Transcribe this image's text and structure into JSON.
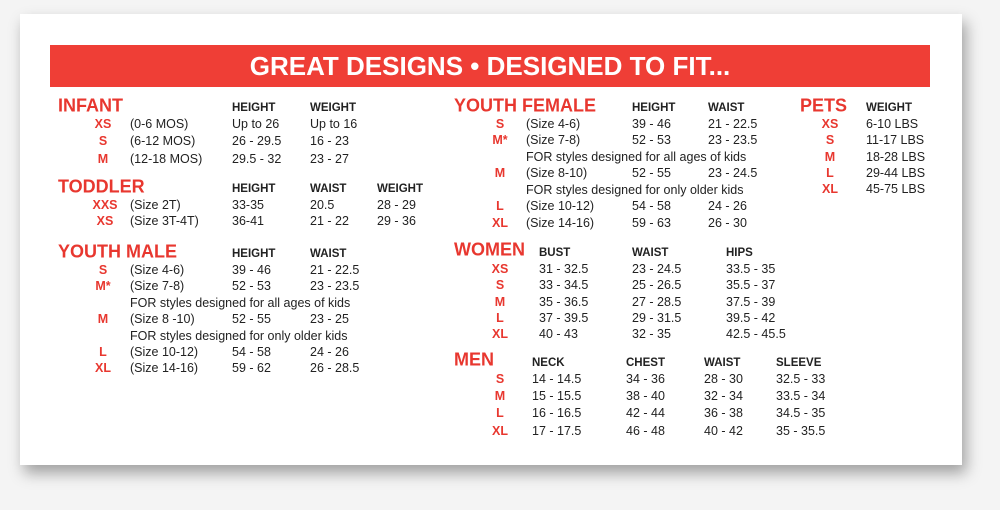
{
  "title": "GREAT DESIGNS • DESIGNED TO FIT...",
  "sections": [
    {
      "name": "INFANT",
      "columns": [
        "HEIGHT",
        "WEIGHT"
      ],
      "rows": [
        {
          "size": "XS",
          "label": "(0-6 MOS)",
          "values": [
            "Up to 26",
            "Up to 16"
          ]
        },
        {
          "size": "S",
          "label": "(6-12 MOS)",
          "values": [
            "26 - 29.5",
            "16 - 23"
          ]
        },
        {
          "size": "M",
          "label": "(12-18 MOS)",
          "values": [
            "29.5 - 32",
            "23 - 27"
          ]
        }
      ]
    },
    {
      "name": "TODDLER",
      "columns": [
        "HEIGHT",
        "WAIST",
        "WEIGHT"
      ],
      "rows": [
        {
          "size": "XXS",
          "label": "(Size 2T)",
          "values": [
            "33-35",
            "20.5",
            "28 - 29"
          ]
        },
        {
          "size": "XS",
          "label": "(Size 3T-4T)",
          "values": [
            "36-41",
            "21 - 22",
            "29 - 36"
          ]
        }
      ]
    },
    {
      "name": "YOUTH MALE",
      "columns": [
        "HEIGHT",
        "WAIST"
      ],
      "rows": [
        {
          "size": "S",
          "label": "(Size 4-6)",
          "values": [
            "39 - 46",
            "21 - 22.5"
          ]
        },
        {
          "size": "M*",
          "label": "(Size 7-8)",
          "values": [
            "52 - 53",
            "23 - 23.5"
          ]
        },
        {
          "note": "FOR styles designed for all ages of kids"
        },
        {
          "size": "M",
          "label": "(Size 8 -10)",
          "values": [
            "52 - 55",
            "23 - 25"
          ]
        },
        {
          "note": "FOR styles designed for only older kids"
        },
        {
          "size": "L",
          "label": "(Size 10-12)",
          "values": [
            "54 - 58",
            "24 - 26"
          ]
        },
        {
          "size": "XL",
          "label": "(Size 14-16)",
          "values": [
            "59 - 62",
            "26 - 28.5"
          ]
        }
      ]
    },
    {
      "name": "YOUTH FEMALE",
      "columns": [
        "HEIGHT",
        "WAIST"
      ],
      "rows": [
        {
          "size": "S",
          "label": "(Size 4-6)",
          "values": [
            "39 - 46",
            "21 - 22.5"
          ]
        },
        {
          "size": "M*",
          "label": "(Size 7-8)",
          "values": [
            "52 - 53",
            "23 - 23.5"
          ]
        },
        {
          "note": "FOR styles designed for all ages of kids"
        },
        {
          "size": "M",
          "label": "(Size 8-10)",
          "values": [
            "52 - 55",
            "23 - 24.5"
          ]
        },
        {
          "note": "FOR styles designed for only older kids"
        },
        {
          "size": "L",
          "label": "(Size 10-12)",
          "values": [
            "54 - 58",
            "24 - 26"
          ]
        },
        {
          "size": "XL",
          "label": "(Size 14-16)",
          "values": [
            "59 - 63",
            "26 - 30"
          ]
        }
      ]
    },
    {
      "name": "PETS",
      "columns": [
        "WEIGHT"
      ],
      "rows": [
        {
          "size": "XS",
          "values": [
            "6-10 LBS"
          ]
        },
        {
          "size": "S",
          "values": [
            "11-17 LBS"
          ]
        },
        {
          "size": "M",
          "values": [
            "18-28 LBS"
          ]
        },
        {
          "size": "L",
          "values": [
            "29-44 LBS"
          ]
        },
        {
          "size": "XL",
          "values": [
            "45-75 LBS"
          ]
        }
      ]
    },
    {
      "name": "WOMEN",
      "columns": [
        "BUST",
        "WAIST",
        "HIPS"
      ],
      "rows": [
        {
          "size": "XS",
          "values": [
            "31 - 32.5",
            "23 - 24.5",
            "33.5 - 35"
          ]
        },
        {
          "size": "S",
          "values": [
            "33 - 34.5",
            "25 - 26.5",
            "35.5 - 37"
          ]
        },
        {
          "size": "M",
          "values": [
            "35 - 36.5",
            "27 - 28.5",
            "37.5 - 39"
          ]
        },
        {
          "size": "L",
          "values": [
            "37 - 39.5",
            "29 - 31.5",
            "39.5 - 42"
          ]
        },
        {
          "size": "XL",
          "values": [
            "40 - 43",
            "32 - 35",
            "42.5 - 45.5"
          ]
        }
      ]
    },
    {
      "name": "MEN",
      "columns": [
        "NECK",
        "CHEST",
        "WAIST",
        "SLEEVE"
      ],
      "rows": [
        {
          "size": "S",
          "values": [
            "14 - 14.5",
            "34 - 36",
            "28 - 30",
            "32.5 - 33"
          ]
        },
        {
          "size": "M",
          "values": [
            "15 - 15.5",
            "38 - 40",
            "32 - 34",
            "33.5 - 34"
          ]
        },
        {
          "size": "L",
          "values": [
            "16 - 16.5",
            "42 - 44",
            "36 - 38",
            "34.5 - 35"
          ]
        },
        {
          "size": "XL",
          "values": [
            "17 - 17.5",
            "46 - 48",
            "40 - 42",
            "35 - 35.5"
          ]
        }
      ]
    }
  ]
}
